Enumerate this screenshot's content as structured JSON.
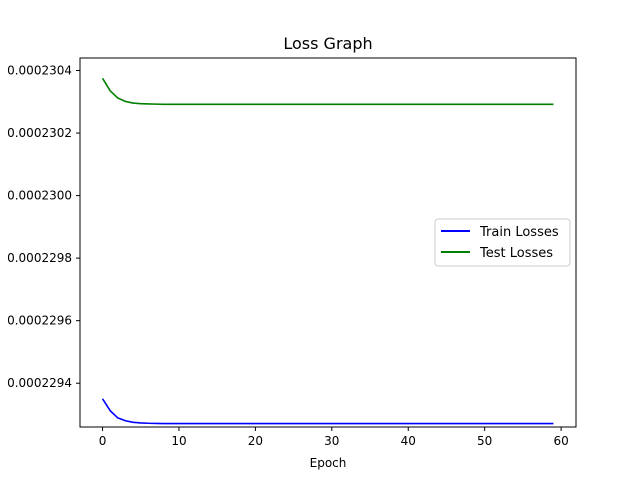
{
  "chart_data": {
    "type": "line",
    "title": "Loss Graph",
    "xlabel": "Epoch",
    "ylabel": "",
    "xlim": [
      -2.95,
      61.95
    ],
    "ylim": [
      0.00022926,
      0.00023044
    ],
    "xticks": [
      0,
      10,
      20,
      30,
      40,
      50,
      60
    ],
    "xtick_labels": [
      "0",
      "10",
      "20",
      "30",
      "40",
      "50",
      "60"
    ],
    "yticks": [
      0.0002294,
      0.0002296,
      0.0002298,
      0.00023,
      0.0002302,
      0.0002304
    ],
    "ytick_labels": [
      "0.0002294",
      "0.0002296",
      "0.0002298",
      "0.0002300",
      "0.0002302",
      "0.0002304"
    ],
    "grid": false,
    "legend_position": "center-right",
    "series": [
      {
        "name": "Train Losses",
        "color": "#0000ff",
        "x_start": 0,
        "x_step": 1,
        "values": [
          0.00022935,
          0.000229312,
          0.000229289,
          0.00022928,
          0.000229275,
          0.000229273,
          0.000229272,
          0.0002292715,
          0.000229271,
          0.000229271,
          0.000229271,
          0.000229271,
          0.000229271,
          0.000229271,
          0.000229271,
          0.000229271,
          0.000229271,
          0.000229271,
          0.000229271,
          0.000229271,
          0.000229271,
          0.000229271,
          0.000229271,
          0.000229271,
          0.000229271,
          0.000229271,
          0.000229271,
          0.000229271,
          0.000229271,
          0.000229271,
          0.000229271,
          0.000229271,
          0.000229271,
          0.000229271,
          0.000229271,
          0.000229271,
          0.000229271,
          0.000229271,
          0.000229271,
          0.000229271,
          0.000229271,
          0.000229271,
          0.000229271,
          0.000229271,
          0.000229271,
          0.000229271,
          0.000229271,
          0.000229271,
          0.000229271,
          0.000229271,
          0.000229271,
          0.000229271,
          0.000229271,
          0.000229271,
          0.000229271,
          0.000229271,
          0.000229271,
          0.000229271,
          0.000229271,
          0.000229271
        ]
      },
      {
        "name": "Test Losses",
        "color": "#008000",
        "x_start": 0,
        "x_step": 1,
        "values": [
          0.000230375,
          0.000230335,
          0.000230312,
          0.000230301,
          0.000230296,
          0.000230294,
          0.000230293,
          0.0002302925,
          0.000230292,
          0.000230292,
          0.000230292,
          0.000230292,
          0.000230292,
          0.000230292,
          0.000230292,
          0.000230292,
          0.000230292,
          0.000230292,
          0.000230292,
          0.000230292,
          0.000230292,
          0.000230292,
          0.000230292,
          0.000230292,
          0.000230292,
          0.000230292,
          0.000230292,
          0.000230292,
          0.000230292,
          0.000230292,
          0.000230292,
          0.000230292,
          0.000230292,
          0.000230292,
          0.000230292,
          0.000230292,
          0.000230292,
          0.000230292,
          0.000230292,
          0.000230292,
          0.000230292,
          0.000230292,
          0.000230292,
          0.000230292,
          0.000230292,
          0.000230292,
          0.000230292,
          0.000230292,
          0.000230292,
          0.000230292,
          0.000230292,
          0.000230292,
          0.000230292,
          0.000230292,
          0.000230292,
          0.000230292,
          0.000230292,
          0.000230292,
          0.000230292,
          0.000230292
        ]
      }
    ]
  }
}
